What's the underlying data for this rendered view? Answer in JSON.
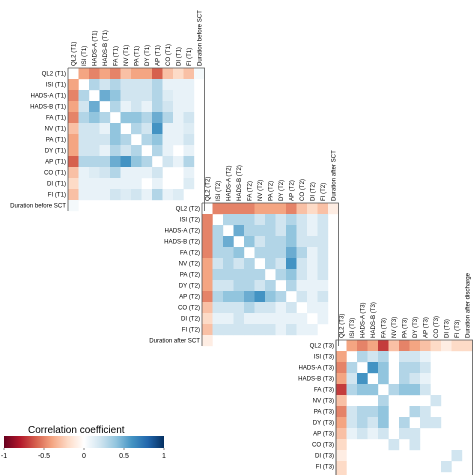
{
  "chart_data": {
    "type": "heatmap",
    "subtype": "correlation-matrix",
    "colormap": {
      "low": "#67001f",
      "mid": "#ffffff",
      "high": "#053061",
      "min": -1,
      "max": 1
    },
    "legend": {
      "title": "Correlation coefficient",
      "ticks": [
        -1,
        -0.5,
        0,
        0.5,
        1
      ],
      "tick_labels": [
        "-1",
        "-0.5",
        "0",
        "0.5",
        "1"
      ],
      "placement": "bottom-left"
    },
    "blocks": [
      {
        "labels": [
          "QL2 (T1)",
          "ISI (T1)",
          "HADS-A (T1)",
          "HADS-B (T1)",
          "FA (T1)",
          "NV (T1)",
          "PA (T1)",
          "DY (T1)",
          "AP (T1)",
          "CO (T1)",
          "DI (T1)",
          "FI (T1)",
          "Duration before SCT"
        ],
        "matrix": [
          [
            0,
            -0.4,
            -0.5,
            -0.4,
            -0.5,
            -0.3,
            -0.4,
            -0.4,
            -0.6,
            -0.3,
            -0.2,
            -0.3,
            0.05
          ],
          [
            -0.4,
            0,
            0.3,
            0.2,
            0.3,
            0.2,
            0.2,
            0.2,
            0.3,
            0.1,
            0.1,
            0.1,
            0
          ],
          [
            -0.5,
            0.3,
            0,
            0.5,
            0.4,
            0.2,
            0.2,
            0.2,
            0.3,
            0.15,
            0.1,
            0.1,
            0
          ],
          [
            -0.4,
            0.2,
            0.5,
            0,
            0.3,
            0.1,
            0.2,
            0.1,
            0.3,
            0.2,
            0.1,
            0.1,
            0
          ],
          [
            -0.5,
            0.3,
            0.4,
            0.3,
            0,
            0.4,
            0.4,
            0.3,
            0.5,
            0.3,
            0.1,
            0.2,
            0
          ],
          [
            -0.3,
            0.2,
            0.2,
            0.1,
            0.4,
            0,
            0.3,
            0.2,
            0.6,
            0.1,
            0.1,
            0.15,
            0
          ],
          [
            -0.4,
            0.2,
            0.2,
            0.2,
            0.4,
            0.3,
            0,
            0.3,
            0.4,
            0.1,
            0.1,
            0.2,
            0
          ],
          [
            -0.4,
            0.2,
            0.2,
            0.1,
            0.3,
            0.2,
            0.3,
            0,
            0.3,
            0.1,
            0,
            0.1,
            0
          ],
          [
            -0.6,
            0.3,
            0.3,
            0.3,
            0.5,
            0.6,
            0.4,
            0.3,
            0,
            0.2,
            0.1,
            0.3,
            0
          ],
          [
            -0.3,
            0.1,
            0.15,
            0.2,
            0.3,
            0.1,
            0.1,
            0.1,
            0.2,
            0,
            0,
            0.1,
            0
          ],
          [
            -0.2,
            0.1,
            0.1,
            0.1,
            0.1,
            0.1,
            0.1,
            0,
            0.1,
            0,
            0,
            0.15,
            0
          ],
          [
            -0.3,
            0.1,
            0.1,
            0.1,
            0.2,
            0.15,
            0.2,
            0.1,
            0.3,
            0.1,
            0.15,
            0,
            0
          ],
          [
            0.05,
            0,
            0,
            0,
            0,
            0,
            0,
            0,
            0,
            0,
            0,
            0,
            0
          ]
        ]
      },
      {
        "labels": [
          "QL2 (T2)",
          "ISI (T2)",
          "HADS-A (T2)",
          "HADS-B (T2)",
          "FA (T2)",
          "NV (T2)",
          "PA (T2)",
          "DY (T2)",
          "AP (T2)",
          "CO (T2)",
          "DI (T2)",
          "FI (T2)",
          "Duration after SCT"
        ],
        "matrix": [
          [
            0,
            -0.5,
            -0.5,
            -0.5,
            -0.5,
            -0.4,
            -0.4,
            -0.4,
            -0.5,
            -0.3,
            -0.2,
            -0.3,
            -0.1
          ],
          [
            -0.5,
            0,
            0.3,
            0.3,
            0.3,
            0.2,
            0.3,
            0.2,
            0.3,
            0.2,
            0.1,
            0.2,
            0
          ],
          [
            -0.5,
            0.3,
            0,
            0.5,
            0.3,
            0.3,
            0.3,
            0.2,
            0.4,
            0.2,
            0.1,
            0.2,
            0
          ],
          [
            -0.5,
            0.3,
            0.5,
            0,
            0.4,
            0.2,
            0.3,
            0.3,
            0.4,
            0.2,
            0.2,
            0.2,
            0
          ],
          [
            -0.5,
            0.3,
            0.3,
            0.4,
            0,
            0.3,
            0.3,
            0.3,
            0.5,
            0.3,
            0.1,
            0.2,
            0
          ],
          [
            -0.4,
            0.2,
            0.3,
            0.2,
            0.3,
            0,
            0.3,
            0.2,
            0.6,
            0.2,
            0.1,
            0.2,
            0
          ],
          [
            -0.4,
            0.3,
            0.3,
            0.3,
            0.3,
            0.3,
            0,
            0.3,
            0.4,
            0.2,
            0.1,
            0.2,
            0
          ],
          [
            -0.4,
            0.2,
            0.2,
            0.3,
            0.3,
            0.2,
            0.3,
            0,
            0.3,
            0.1,
            0.1,
            0.1,
            0
          ],
          [
            -0.5,
            0.3,
            0.4,
            0.4,
            0.5,
            0.6,
            0.4,
            0.3,
            0,
            0.2,
            0.1,
            0.2,
            0
          ],
          [
            -0.3,
            0.2,
            0.2,
            0.2,
            0.3,
            0.2,
            0.2,
            0.1,
            0.2,
            0,
            0.1,
            0.1,
            0
          ],
          [
            -0.2,
            0.1,
            0.1,
            0.2,
            0.1,
            0.1,
            0.1,
            0.1,
            0.1,
            0.1,
            0,
            0.1,
            0
          ],
          [
            -0.3,
            0.2,
            0.2,
            0.2,
            0.2,
            0.2,
            0.2,
            0.1,
            0.2,
            0.1,
            0.1,
            0,
            0
          ],
          [
            -0.1,
            0,
            0,
            0,
            0,
            0,
            0,
            0,
            0,
            0,
            0,
            0,
            0
          ]
        ]
      },
      {
        "labels": [
          "QL2 (T3)",
          "ISI (T3)",
          "HADS-A (T3)",
          "HADS-B (T3)",
          "FA (T3)",
          "NV (T3)",
          "PA (T3)",
          "DY (T3)",
          "AP (T3)",
          "CO (T3)",
          "DI (T3)",
          "FI (T3)",
          "Duration after discharge"
        ],
        "matrix": [
          [
            0,
            -0.4,
            -0.5,
            -0.4,
            -0.7,
            -0.3,
            -0.5,
            -0.4,
            -0.3,
            -0.2,
            -0.1,
            -0.2,
            -0.2
          ],
          [
            -0.4,
            0,
            0.3,
            0.2,
            0.3,
            0,
            0.2,
            0.2,
            0.1,
            0,
            0,
            0,
            0
          ],
          [
            -0.5,
            0.3,
            0,
            0.6,
            0.4,
            0,
            0.3,
            0.3,
            0.2,
            0,
            0,
            0,
            0
          ],
          [
            -0.4,
            0.2,
            0.6,
            0,
            0.4,
            0,
            0.3,
            0.2,
            0.1,
            0,
            0,
            0,
            0
          ],
          [
            -0.7,
            0.3,
            0.4,
            0.4,
            0,
            0.3,
            0.4,
            0.4,
            0.2,
            0,
            0,
            0,
            0
          ],
          [
            -0.3,
            0,
            0,
            0,
            0.3,
            0,
            0,
            0,
            0,
            0.2,
            0,
            0,
            0
          ],
          [
            -0.5,
            0.2,
            0.3,
            0.3,
            0.4,
            0,
            0,
            0.3,
            0.2,
            0,
            0,
            0,
            0
          ],
          [
            -0.4,
            0.2,
            0.3,
            0.2,
            0.4,
            0,
            0.3,
            0,
            0.2,
            0.2,
            0,
            0,
            0
          ],
          [
            -0.3,
            0.1,
            0.2,
            0.1,
            0.2,
            0,
            0.2,
            0.2,
            0,
            0,
            0,
            0,
            0
          ],
          [
            -0.2,
            0,
            0,
            0,
            0,
            0.2,
            0,
            0.2,
            0,
            0,
            0,
            0,
            0
          ],
          [
            -0.1,
            0,
            0,
            0,
            0,
            0,
            0,
            0,
            0,
            0,
            0,
            0.2,
            0
          ],
          [
            -0.2,
            0,
            0,
            0,
            0,
            0,
            0,
            0,
            0,
            0,
            0.2,
            0,
            0
          ],
          [
            -0.2,
            0,
            0,
            0,
            0,
            0,
            0,
            0,
            0,
            0,
            0,
            0,
            0
          ]
        ]
      }
    ]
  }
}
